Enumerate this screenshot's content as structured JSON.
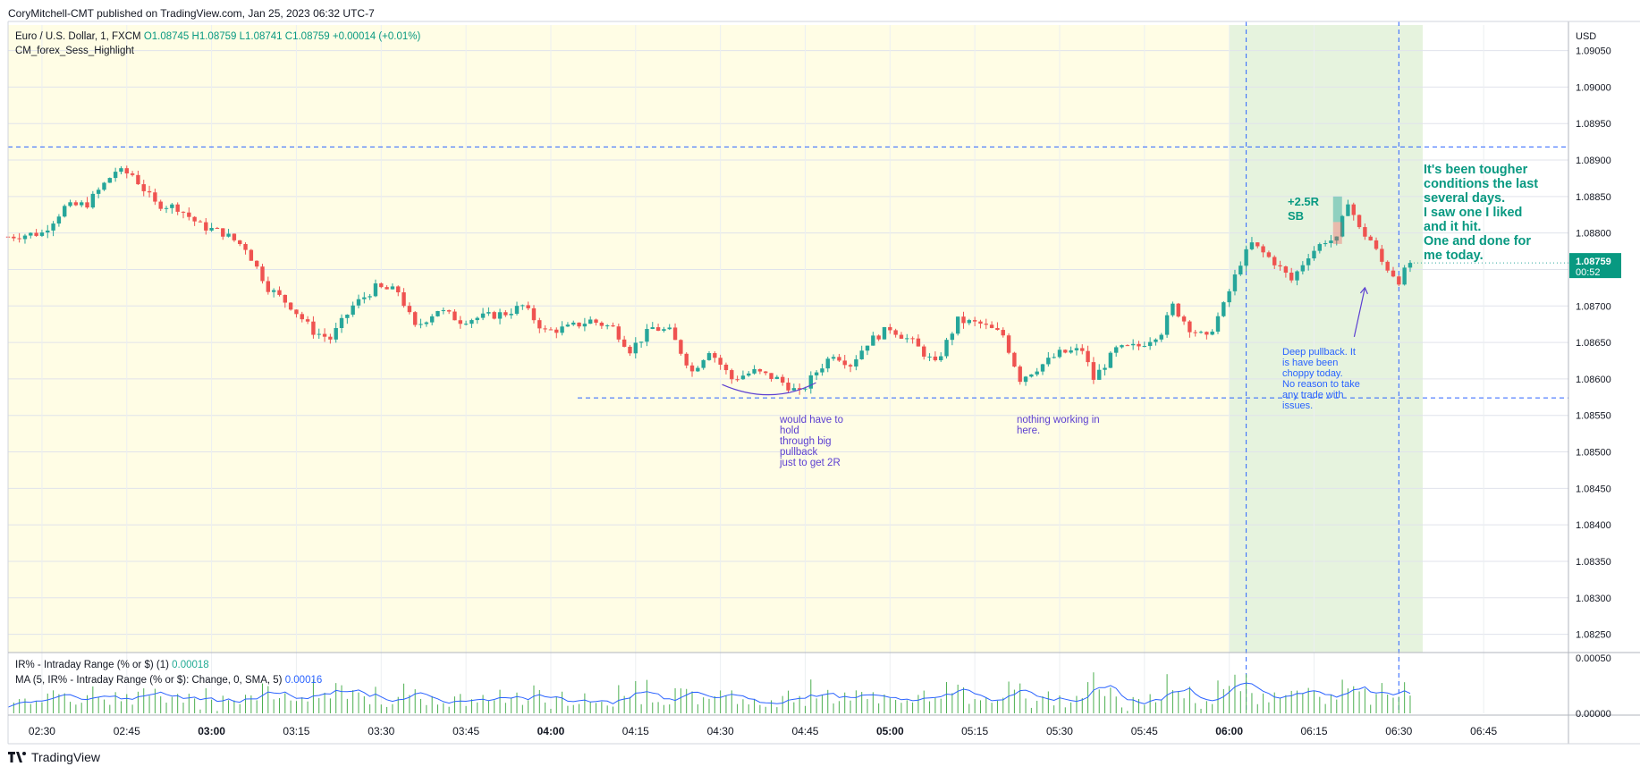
{
  "header": {
    "publisher": "CoryMitchell-CMT published on TradingView.com, Jan 25, 2023 06:32 UTC-7"
  },
  "legend": {
    "symbol": "Euro / U.S. Dollar, 1, FXCM",
    "o": "O1.08745",
    "h": "H1.08759",
    "l": "L1.08741",
    "c": "C1.08759",
    "chg": "+0.00014 (+0.01%)",
    "indicator": "CM_forex_Sess_Highlight",
    "ir_label": "IR% - Intraday Range (% or $) (1)",
    "ir_value": "0.00018",
    "ma_label": "MA (5, IR% - Intraday Range (% or $): Change, 0, SMA, 5)",
    "ma_value": "0.00016"
  },
  "annotations": {
    "note_main": "It's been tougher\nconditions the last\nseveral days.\nI saw one I liked\nand it hit.\nOne and done for\nme today.",
    "note_trade": "+2.5R\nSB",
    "note_hold": "would have to\nhold\nthrough big\npullback\njust to get 2R",
    "note_nothing": "nothing working in\nhere.",
    "note_deep": "Deep pullback. It\nis have been\nchoppy today.\nNo reason to take\nany trade with\nissues."
  },
  "footer": {
    "brand": "TradingView"
  },
  "colors": {
    "up": "#26a69a",
    "down": "#ef5350",
    "session_bg": "#fffde5",
    "active_bg": "#e6f3de",
    "level_line": "#2962ff",
    "ma": "#2962ff",
    "volume_bar": "#4caf50",
    "note_green": "#089981",
    "note_purple": "#5b3fd1",
    "note_blue": "#2962ff"
  },
  "chart_data": {
    "type": "candlestick",
    "currency": "USD",
    "y_ticks": [
      "1.09050",
      "1.09000",
      "1.08950",
      "1.08900",
      "1.08850",
      "1.08800",
      "1.08750",
      "1.08700",
      "1.08650",
      "1.08600",
      "1.08550",
      "1.08500",
      "1.08450",
      "1.08400",
      "1.08350",
      "1.08300",
      "1.08250"
    ],
    "x_ticks": [
      "02:30",
      "02:45",
      "03:00",
      "03:15",
      "03:30",
      "03:45",
      "04:00",
      "04:15",
      "04:30",
      "04:45",
      "05:00",
      "05:15",
      "05:30",
      "05:45",
      "06:00",
      "06:15",
      "06:30",
      "06:45"
    ],
    "bold_ticks": [
      "03:00",
      "04:00",
      "05:00",
      "06:00"
    ],
    "ylim": [
      1.08225,
      1.09085
    ],
    "x_start": "02:24",
    "x_end": "07:00",
    "last_price": "1.08759",
    "countdown": "00:52",
    "indicator_ticks": [
      "0.00050",
      "0.00000"
    ],
    "indicator_ylim": [
      0,
      0.00055
    ],
    "levels": [
      1.08918,
      1.08574
    ],
    "session_split": "06:00",
    "session_end": "06:32",
    "vlines": [
      "06:03",
      "06:30"
    ],
    "close_path": [
      [
        "02:24",
        1.08795
      ],
      [
        "02:30",
        1.088
      ],
      [
        "02:34",
        1.08835
      ],
      [
        "02:38",
        1.0884
      ],
      [
        "02:43",
        1.08885
      ],
      [
        "02:46",
        1.0888
      ],
      [
        "02:50",
        1.0884
      ],
      [
        "02:54",
        1.08835
      ],
      [
        "02:58",
        1.0881
      ],
      [
        "03:02",
        1.088
      ],
      [
        "03:06",
        1.0878
      ],
      [
        "03:10",
        1.08725
      ],
      [
        "03:14",
        1.087
      ],
      [
        "03:18",
        1.08665
      ],
      [
        "03:21",
        1.08655
      ],
      [
        "03:25",
        1.087
      ],
      [
        "03:29",
        1.08725
      ],
      [
        "03:33",
        1.0872
      ],
      [
        "03:36",
        1.0867
      ],
      [
        "03:40",
        1.08695
      ],
      [
        "03:44",
        1.0868
      ],
      [
        "03:48",
        1.08685
      ],
      [
        "03:52",
        1.0869
      ],
      [
        "03:55",
        1.087
      ],
      [
        "03:59",
        1.08665
      ],
      [
        "04:03",
        1.0867
      ],
      [
        "04:07",
        1.0868
      ],
      [
        "04:11",
        1.0867
      ],
      [
        "04:14",
        1.0864
      ],
      [
        "04:18",
        1.0867
      ],
      [
        "04:21",
        1.08665
      ],
      [
        "04:25",
        1.0861
      ],
      [
        "04:28",
        1.0864
      ],
      [
        "04:32",
        1.086
      ],
      [
        "04:36",
        1.0861
      ],
      [
        "04:40",
        1.086
      ],
      [
        "04:44",
        1.0858
      ],
      [
        "04:47",
        1.0861
      ],
      [
        "04:50",
        1.08635
      ],
      [
        "04:53",
        1.0862
      ],
      [
        "04:56",
        1.0865
      ],
      [
        "05:00",
        1.0867
      ],
      [
        "05:04",
        1.0865
      ],
      [
        "05:08",
        1.0862
      ],
      [
        "05:12",
        1.0868
      ],
      [
        "05:16",
        1.08675
      ],
      [
        "05:20",
        1.0866
      ],
      [
        "05:23",
        1.086
      ],
      [
        "05:27",
        1.0862
      ],
      [
        "05:30",
        1.08635
      ],
      [
        "05:34",
        1.0864
      ],
      [
        "05:36",
        1.086
      ],
      [
        "05:40",
        1.0864
      ],
      [
        "05:44",
        1.08645
      ],
      [
        "05:48",
        1.08665
      ],
      [
        "05:50",
        1.087
      ],
      [
        "05:53",
        1.0867
      ],
      [
        "05:56",
        1.08655
      ],
      [
        "05:59",
        1.087
      ],
      [
        "06:02",
        1.0876
      ],
      [
        "06:04",
        1.08785
      ],
      [
        "06:08",
        1.0876
      ],
      [
        "06:11",
        1.08735
      ],
      [
        "06:14",
        1.0877
      ],
      [
        "06:17",
        1.0879
      ],
      [
        "06:19",
        1.0879
      ],
      [
        "06:21",
        1.08845
      ],
      [
        "06:23",
        1.08805
      ],
      [
        "06:25",
        1.0879
      ],
      [
        "06:27",
        1.0876
      ],
      [
        "06:30",
        1.08735
      ],
      [
        "06:32",
        1.08759
      ]
    ]
  }
}
